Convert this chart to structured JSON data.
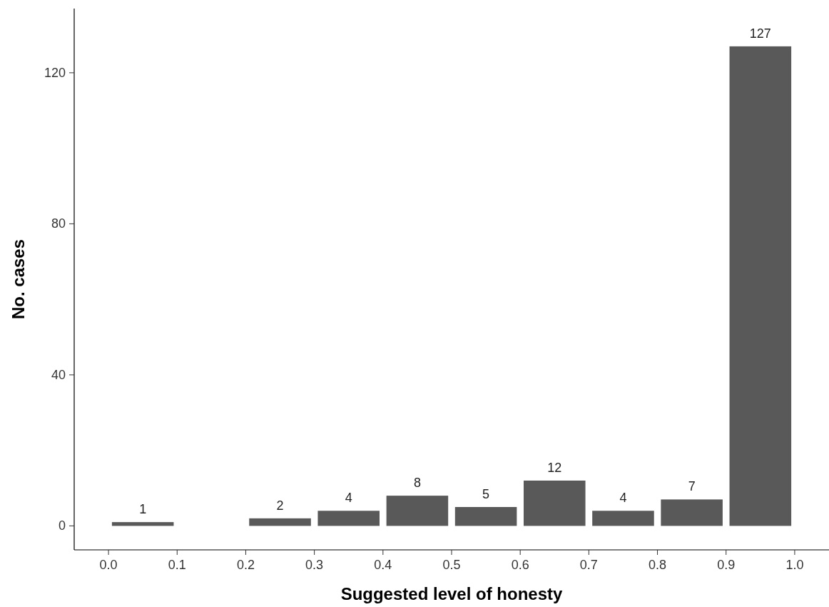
{
  "chart_data": {
    "type": "histogram",
    "xlabel": "Suggested level of honesty",
    "ylabel": "No. cases",
    "bins": [
      0,
      0.1,
      0.2,
      0.3,
      0.4,
      0.5,
      0.6,
      0.7,
      0.8,
      0.9,
      1.0
    ],
    "values": [
      1,
      0,
      2,
      4,
      8,
      5,
      12,
      4,
      7,
      127
    ],
    "value_labels": [
      "1",
      null,
      "2",
      "4",
      "8",
      "5",
      "12",
      "4",
      "7",
      "127"
    ],
    "color": "#595959",
    "xlim": [
      -0.05,
      1.05
    ],
    "xticks": [
      {
        "value": 0,
        "label": "0.0"
      },
      {
        "value": 0.1,
        "label": "0.1"
      },
      {
        "value": 0.2,
        "label": "0.2"
      },
      {
        "value": 0.3,
        "label": "0.3"
      },
      {
        "value": 0.4,
        "label": "0.4"
      },
      {
        "value": 0.5,
        "label": "0.5"
      },
      {
        "value": 0.6,
        "label": "0.6"
      },
      {
        "value": 0.7,
        "label": "0.7"
      },
      {
        "value": 0.8,
        "label": "0.8"
      },
      {
        "value": 0.9,
        "label": "0.9"
      },
      {
        "value": 1.0,
        "label": "1.0"
      }
    ],
    "ylim": [
      -6.35,
      137
    ],
    "yticks": [
      0,
      40,
      80,
      120
    ],
    "grid": false
  }
}
